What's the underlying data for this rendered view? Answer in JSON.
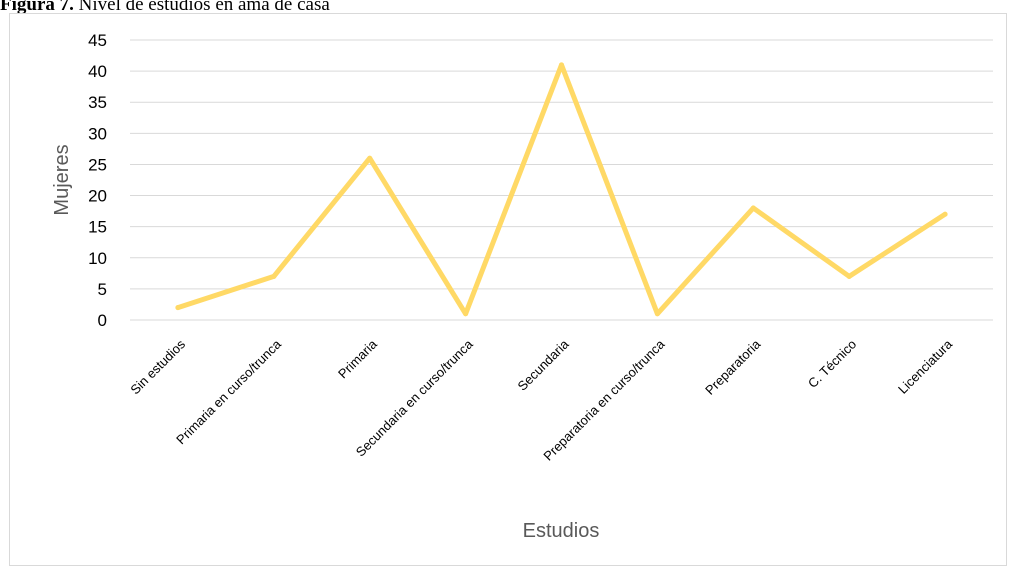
{
  "figure": {
    "label": "Figura 7.",
    "title": "Nivel de estudios en ama de casa"
  },
  "chart_data": {
    "type": "line",
    "title": "",
    "xlabel": "Estudios",
    "ylabel": "Mujeres",
    "categories": [
      "Sin estudios",
      "Primaria en curso/trunca",
      "Primaria",
      "Secundaria en curso/trunca",
      "Secundaria",
      "Preparatoria en curso/trunca",
      "Preparatoria",
      "C. Técnico",
      "Licenciatura"
    ],
    "series": [
      {
        "values": [
          2,
          7,
          26,
          1,
          41,
          1,
          18,
          7,
          17
        ],
        "color": "#ffd966"
      }
    ],
    "ylim": [
      0,
      45
    ],
    "yticks": [
      0,
      5,
      10,
      15,
      20,
      25,
      30,
      35,
      40,
      45
    ],
    "grid": true,
    "legend": "none"
  }
}
